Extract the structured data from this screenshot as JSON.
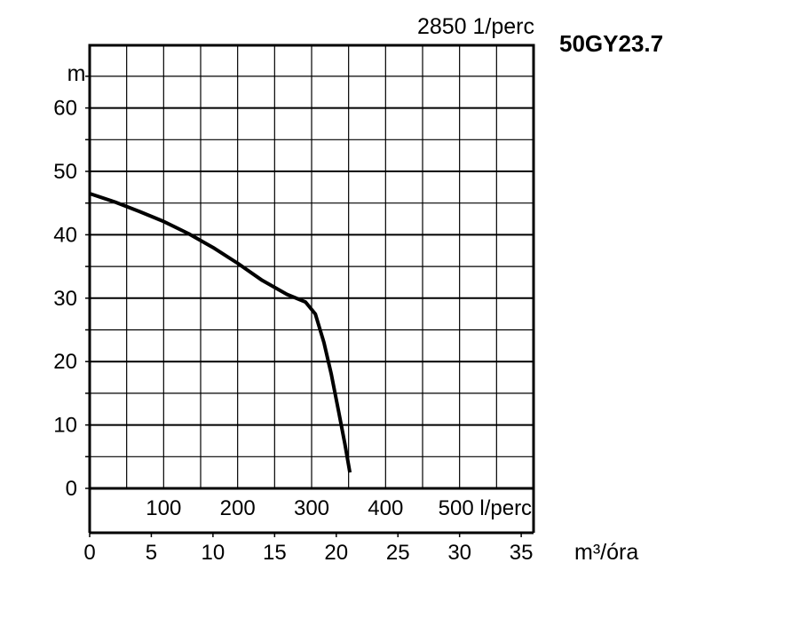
{
  "chart_data": {
    "type": "line",
    "title": "50GY23.7",
    "speed_label": "2850 1/perc",
    "ylabel": "m",
    "ylim": [
      0,
      70
    ],
    "y_ticks": [
      0,
      10,
      20,
      30,
      40,
      50,
      60
    ],
    "grid": true,
    "x_axes": [
      {
        "name": "flow_l_per_min",
        "unit_label": "l/perc",
        "ticks": [
          100,
          200,
          300,
          400,
          500
        ],
        "tick_labels": [
          "100",
          "200",
          "300",
          "400",
          "500 l/perc"
        ],
        "range": [
          0,
          600
        ]
      },
      {
        "name": "flow_m3_per_h",
        "unit_label": "m³/óra",
        "ticks": [
          0,
          5,
          10,
          15,
          20,
          25,
          30,
          35
        ],
        "tick_labels": [
          "0",
          "5",
          "10",
          "15",
          "20",
          "25",
          "30",
          "35"
        ],
        "range": [
          0,
          36
        ]
      }
    ],
    "series": [
      {
        "x_axis": "flow_m3_per_h",
        "x": [
          0,
          2,
          4,
          6,
          8,
          10,
          12,
          14,
          16,
          17.5,
          18.3,
          19,
          19.6,
          20.2,
          20.7,
          21.1
        ],
        "y": [
          46.5,
          45.2,
          43.7,
          42.1,
          40.2,
          38.0,
          35.5,
          32.8,
          30.6,
          29.4,
          27.5,
          23.0,
          18.0,
          12.0,
          7.0,
          2.5
        ]
      }
    ]
  }
}
